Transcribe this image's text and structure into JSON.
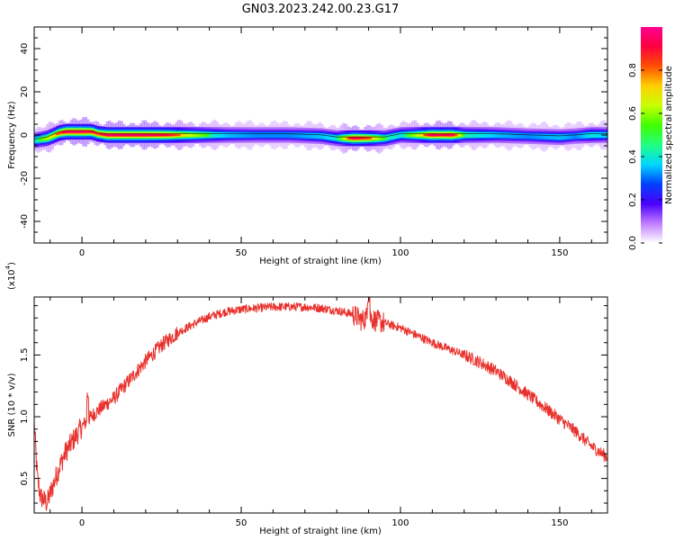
{
  "figure": {
    "title": "GN03.2023.242.00.23.G17"
  },
  "chart_data": [
    {
      "type": "heatmap",
      "xlabel": "Height of straight line (km)",
      "ylabel": "Frequency (Hz)",
      "xlim": [
        -15,
        165
      ],
      "ylim": [
        -50,
        50
      ],
      "xticks": [
        "0",
        "50",
        "100",
        "150"
      ],
      "yticks": [
        "-40",
        "-20",
        "0",
        "20",
        "40"
      ],
      "grid": false,
      "ridge": [
        {
          "x": -15,
          "y": -2.5,
          "a": 0.55
        },
        {
          "x": -11,
          "y": -1.5,
          "a": 0.7
        },
        {
          "x": -7,
          "y": 1.0,
          "a": 0.85
        },
        {
          "x": -5,
          "y": 1.5,
          "a": 0.95
        },
        {
          "x": 0,
          "y": 1.5,
          "a": 0.95
        },
        {
          "x": 3,
          "y": 1.5,
          "a": 0.9
        },
        {
          "x": 5,
          "y": 0.5,
          "a": 0.85
        },
        {
          "x": 8,
          "y": 0.0,
          "a": 0.95
        },
        {
          "x": 20,
          "y": 0.0,
          "a": 0.95
        },
        {
          "x": 27,
          "y": 0.0,
          "a": 0.9
        },
        {
          "x": 35,
          "y": 0.0,
          "a": 0.7
        },
        {
          "x": 45,
          "y": 0.0,
          "a": 0.5
        },
        {
          "x": 55,
          "y": 0.0,
          "a": 0.45
        },
        {
          "x": 65,
          "y": 0.0,
          "a": 0.45
        },
        {
          "x": 75,
          "y": -0.5,
          "a": 0.5
        },
        {
          "x": 80,
          "y": -1.5,
          "a": 0.55
        },
        {
          "x": 85,
          "y": -1.5,
          "a": 0.95
        },
        {
          "x": 90,
          "y": -1.5,
          "a": 0.85
        },
        {
          "x": 95,
          "y": -1.5,
          "a": 0.6
        },
        {
          "x": 100,
          "y": 0.0,
          "a": 0.55
        },
        {
          "x": 105,
          "y": 0.0,
          "a": 0.7
        },
        {
          "x": 110,
          "y": 0.0,
          "a": 0.95
        },
        {
          "x": 113,
          "y": 0.0,
          "a": 0.9
        },
        {
          "x": 116,
          "y": 0.0,
          "a": 0.95
        },
        {
          "x": 120,
          "y": 0.0,
          "a": 0.6
        },
        {
          "x": 130,
          "y": 0.0,
          "a": 0.5
        },
        {
          "x": 140,
          "y": -0.5,
          "a": 0.45
        },
        {
          "x": 150,
          "y": -1.0,
          "a": 0.5
        },
        {
          "x": 155,
          "y": -0.5,
          "a": 0.45
        },
        {
          "x": 160,
          "y": 0.0,
          "a": 0.55
        },
        {
          "x": 165,
          "y": 0.0,
          "a": 0.5
        }
      ],
      "colorbar": {
        "label": "Normalized spectral amplitude",
        "range": [
          0,
          1
        ],
        "ticks": [
          "0.0",
          "0.2",
          "0.4",
          "0.6",
          "0.8"
        ],
        "colormap": [
          "#ffffff",
          "#c07cff",
          "#4a00ff",
          "#0040ff",
          "#00d8ff",
          "#20ff80",
          "#40ff00",
          "#c8ff00",
          "#ffd000",
          "#ff5000",
          "#ff0040",
          "#ff0090"
        ]
      }
    },
    {
      "type": "line",
      "xlabel": "Height of straight line (km)",
      "ylabel": "SNR (10 * v/v)",
      "y_multiplier": "(x10",
      "y_multiplier_exp": "4",
      "y_multiplier_close": ")",
      "xlim": [
        -15,
        165
      ],
      "ylim": [
        0.22,
        1.97
      ],
      "xticks": [
        "0",
        "50",
        "100",
        "150"
      ],
      "yticks": [
        "0.5",
        "1.0",
        "1.5"
      ],
      "color": "#e8312c",
      "series": [
        {
          "x": [
            -15,
            -14,
            -13,
            -11,
            -9,
            -7,
            -5,
            -3,
            -1,
            0,
            2,
            5,
            10,
            15,
            20,
            25,
            30,
            35,
            40,
            45,
            50,
            55,
            60,
            65,
            70,
            75,
            80,
            85,
            88,
            90,
            92,
            95,
            100,
            105,
            110,
            115,
            120,
            125,
            130,
            135,
            140,
            145,
            150,
            155,
            160,
            165
          ],
          "y": [
            0.95,
            0.5,
            0.35,
            0.3,
            0.45,
            0.6,
            0.72,
            0.8,
            0.88,
            0.92,
            0.98,
            1.05,
            1.15,
            1.3,
            1.45,
            1.58,
            1.68,
            1.75,
            1.81,
            1.85,
            1.87,
            1.88,
            1.89,
            1.89,
            1.89,
            1.88,
            1.86,
            1.83,
            1.78,
            1.82,
            1.78,
            1.76,
            1.72,
            1.66,
            1.6,
            1.55,
            1.5,
            1.44,
            1.37,
            1.28,
            1.18,
            1.08,
            0.98,
            0.88,
            0.76,
            0.67
          ]
        }
      ]
    }
  ]
}
